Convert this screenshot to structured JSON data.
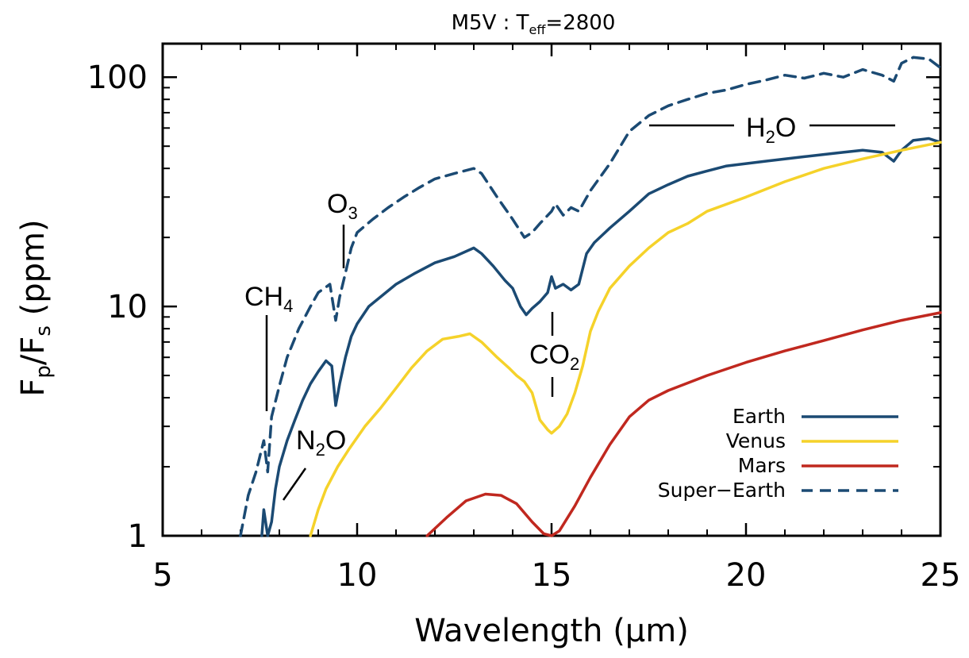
{
  "chart_data": {
    "type": "line",
    "title": {
      "prefix": "M5V : T",
      "sub": "eff",
      "suffix": "=2800"
    },
    "xlabel": "Wavelength (μm)",
    "ylabel": {
      "F": "F",
      "p": "p",
      "slash": "/F",
      "s": "s",
      "unit": " (ppm)"
    },
    "xlim": [
      5,
      25
    ],
    "ylim": [
      1,
      140
    ],
    "yscale": "log",
    "xticks": [
      5,
      10,
      15,
      20,
      25
    ],
    "xtick_labels": [
      "5",
      "10",
      "15",
      "20",
      "25"
    ],
    "yticks": [
      1,
      10,
      100
    ],
    "ytick_labels": [
      "1",
      "10",
      "100"
    ],
    "grid": false,
    "legend_position": "bottom-right",
    "series": [
      {
        "name": "Earth",
        "color": "#1b4a73",
        "dash": false,
        "x": [
          7.55,
          7.6,
          7.7,
          7.8,
          7.9,
          8.0,
          8.2,
          8.4,
          8.6,
          8.8,
          9.0,
          9.2,
          9.35,
          9.45,
          9.55,
          9.7,
          9.85,
          10.0,
          10.3,
          10.6,
          11.0,
          11.5,
          12.0,
          12.5,
          13.0,
          13.2,
          13.5,
          13.8,
          14.0,
          14.2,
          14.35,
          14.5,
          14.7,
          14.9,
          15.0,
          15.1,
          15.3,
          15.5,
          15.7,
          15.9,
          16.1,
          16.5,
          17.0,
          17.5,
          18.0,
          18.5,
          19.0,
          19.5,
          20.0,
          20.5,
          21.0,
          21.5,
          22.0,
          22.5,
          23.0,
          23.5,
          23.8,
          24.0,
          24.3,
          24.7,
          25.0
        ],
        "y": [
          1.0,
          1.3,
          1.0,
          1.15,
          1.6,
          2.0,
          2.6,
          3.2,
          3.9,
          4.6,
          5.2,
          5.8,
          5.5,
          3.7,
          4.6,
          6.0,
          7.4,
          8.4,
          10.0,
          11.0,
          12.5,
          14.0,
          15.5,
          16.5,
          18.0,
          17.0,
          15.0,
          13.0,
          12.0,
          10.0,
          9.2,
          9.8,
          10.5,
          11.5,
          13.5,
          12.0,
          12.5,
          11.8,
          12.5,
          17.0,
          19.0,
          22.0,
          26.0,
          31.0,
          34.0,
          37.0,
          39.0,
          41.0,
          42.0,
          43.0,
          44.0,
          45.0,
          46.0,
          47.0,
          48.0,
          47.0,
          43.0,
          48.0,
          53.0,
          54.0,
          52.0
        ]
      },
      {
        "name": "Venus",
        "color": "#f5d22a",
        "dash": false,
        "x": [
          8.8,
          9.0,
          9.2,
          9.5,
          9.8,
          10.2,
          10.6,
          11.0,
          11.4,
          11.8,
          12.2,
          12.6,
          12.9,
          13.2,
          13.6,
          13.9,
          14.1,
          14.3,
          14.5,
          14.7,
          14.9,
          15.0,
          15.2,
          15.4,
          15.6,
          15.8,
          16.0,
          16.2,
          16.5,
          17.0,
          17.5,
          18.0,
          18.5,
          19.0,
          20.0,
          21.0,
          22.0,
          23.0,
          24.0,
          25.0
        ],
        "y": [
          1.0,
          1.3,
          1.6,
          2.0,
          2.4,
          3.0,
          3.6,
          4.4,
          5.4,
          6.4,
          7.2,
          7.4,
          7.6,
          7.0,
          6.0,
          5.4,
          5.0,
          4.7,
          4.2,
          3.2,
          2.9,
          2.8,
          3.0,
          3.4,
          4.2,
          5.5,
          7.8,
          9.5,
          12.0,
          15.0,
          18.0,
          21.0,
          23.0,
          26.0,
          30.0,
          35.0,
          40.0,
          44.0,
          48.0,
          52.0
        ]
      },
      {
        "name": "Mars",
        "color": "#c0281f",
        "dash": false,
        "x": [
          11.8,
          12.3,
          12.8,
          13.3,
          13.7,
          14.1,
          14.5,
          14.8,
          15.0,
          15.2,
          15.6,
          16.0,
          16.5,
          17.0,
          17.5,
          18.0,
          19.0,
          20.0,
          21.0,
          22.0,
          23.0,
          24.0,
          25.0
        ],
        "y": [
          1.0,
          1.2,
          1.42,
          1.52,
          1.5,
          1.38,
          1.15,
          1.02,
          1.0,
          1.05,
          1.35,
          1.8,
          2.5,
          3.3,
          3.9,
          4.3,
          5.0,
          5.7,
          6.4,
          7.1,
          7.9,
          8.7,
          9.4
        ]
      },
      {
        "name": "Super−Earth",
        "color": "#1b4a73",
        "dash": true,
        "x": [
          7.0,
          7.2,
          7.4,
          7.6,
          7.7,
          7.8,
          8.0,
          8.2,
          8.5,
          8.8,
          9.0,
          9.3,
          9.45,
          9.55,
          9.7,
          9.85,
          10.0,
          10.4,
          10.8,
          11.2,
          11.6,
          12.0,
          12.5,
          13.0,
          13.2,
          13.6,
          14.0,
          14.3,
          14.5,
          14.7,
          15.0,
          15.1,
          15.3,
          15.5,
          15.7,
          16.0,
          16.5,
          17.0,
          17.5,
          18.0,
          18.5,
          19.0,
          19.5,
          20.0,
          20.5,
          21.0,
          21.5,
          22.0,
          22.5,
          23.0,
          23.5,
          23.8,
          24.0,
          24.3,
          24.7,
          25.0
        ],
        "y": [
          1.0,
          1.5,
          1.9,
          2.6,
          1.9,
          3.3,
          4.5,
          6.0,
          8.0,
          10.0,
          11.5,
          12.5,
          8.7,
          11.0,
          14.0,
          18.0,
          21.0,
          24.0,
          27.0,
          30.0,
          33.0,
          36.0,
          38.0,
          40.0,
          38.0,
          30.0,
          24.0,
          20.0,
          21.0,
          23.0,
          26.0,
          28.0,
          25.0,
          27.0,
          26.0,
          32.0,
          42.0,
          58.0,
          68.0,
          75.0,
          80.0,
          85.0,
          88.0,
          93.0,
          97.0,
          102.0,
          99.0,
          104.0,
          100.0,
          108.0,
          102.0,
          96.0,
          115.0,
          122.0,
          120.0,
          110.0
        ]
      }
    ],
    "annotations": {
      "ch4": {
        "main": "CH",
        "sub": "4"
      },
      "o3": {
        "main": "O",
        "sub": "3"
      },
      "n2o": {
        "a": "N",
        "sub": "2",
        "b": "O"
      },
      "co2": {
        "main": "CO",
        "sub": "2"
      },
      "h2o": {
        "a": "H",
        "sub": "2",
        "b": "O"
      }
    }
  }
}
